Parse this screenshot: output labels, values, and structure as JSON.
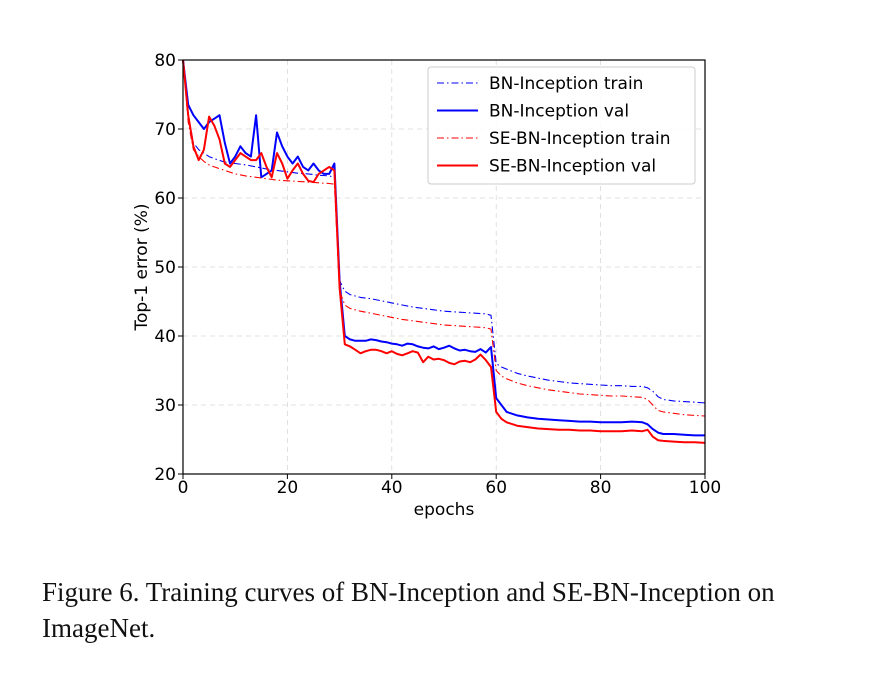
{
  "chart_data": {
    "type": "line",
    "xlabel": "epochs",
    "ylabel": "Top-1 error (%)",
    "xlim": [
      0,
      100
    ],
    "ylim": [
      20,
      80
    ],
    "xticks": [
      "0",
      "20",
      "40",
      "60",
      "80",
      "100"
    ],
    "yticks": [
      "20",
      "30",
      "40",
      "50",
      "60",
      "70",
      "80"
    ],
    "grid": true,
    "legend_position": "top-right",
    "series": [
      {
        "name": "BN-Inception train",
        "color": "#0000ff",
        "style": "dashdot",
        "x": [
          0,
          1,
          2,
          3,
          4,
          5,
          6,
          8,
          10,
          12,
          14,
          16,
          18,
          20,
          22,
          24,
          26,
          28,
          29,
          30,
          31,
          32,
          34,
          36,
          38,
          40,
          42,
          44,
          46,
          48,
          50,
          52,
          54,
          56,
          58,
          59,
          60,
          61,
          62,
          64,
          66,
          68,
          70,
          72,
          74,
          76,
          78,
          80,
          82,
          84,
          86,
          88,
          89,
          90,
          91,
          92,
          94,
          96,
          98,
          100
        ],
        "values": [
          80,
          72,
          68,
          67,
          66.5,
          66,
          65.7,
          65.2,
          65,
          64.8,
          64.5,
          64.2,
          64,
          63.8,
          63.6,
          63.5,
          63.3,
          63.2,
          63,
          48,
          46.5,
          46,
          45.6,
          45.4,
          45.1,
          44.8,
          44.5,
          44.2,
          44,
          43.8,
          43.6,
          43.5,
          43.4,
          43.3,
          43.2,
          43,
          36,
          35.5,
          35.2,
          34.6,
          34.2,
          33.9,
          33.6,
          33.4,
          33.2,
          33.1,
          33,
          32.9,
          32.8,
          32.8,
          32.7,
          32.7,
          32.5,
          32,
          31.2,
          30.8,
          30.6,
          30.5,
          30.4,
          30.3
        ]
      },
      {
        "name": "BN-Inception val",
        "color": "#0000ff",
        "style": "solid",
        "x": [
          0,
          1,
          2,
          3,
          4,
          5,
          6,
          7,
          8,
          9,
          10,
          11,
          12,
          13,
          14,
          15,
          16,
          17,
          18,
          19,
          20,
          21,
          22,
          23,
          24,
          25,
          26,
          27,
          28,
          29,
          30,
          31,
          32,
          33,
          34,
          35,
          36,
          37,
          38,
          39,
          40,
          41,
          42,
          43,
          44,
          45,
          46,
          47,
          48,
          49,
          50,
          51,
          52,
          53,
          54,
          55,
          56,
          57,
          58,
          59,
          60,
          61,
          62,
          64,
          66,
          68,
          70,
          72,
          74,
          76,
          78,
          80,
          82,
          84,
          86,
          88,
          89,
          90,
          91,
          92,
          94,
          96,
          98,
          100
        ],
        "values": [
          80,
          73.5,
          72,
          71,
          70,
          71,
          71.5,
          72,
          68,
          65,
          66,
          67.5,
          66.5,
          66,
          72,
          63,
          63.5,
          64,
          69.5,
          67.5,
          66,
          65,
          66,
          64.5,
          64,
          65,
          64,
          63.5,
          63.5,
          65,
          48,
          40,
          39.5,
          39.3,
          39.3,
          39.3,
          39.5,
          39.4,
          39.2,
          39.1,
          38.9,
          38.8,
          38.6,
          38.9,
          38.8,
          38.5,
          38.3,
          38.2,
          38.5,
          38.1,
          38.3,
          38.6,
          38.2,
          37.9,
          38,
          37.8,
          37.7,
          38.1,
          37.6,
          38.4,
          31,
          30,
          29,
          28.5,
          28.2,
          28,
          27.9,
          27.8,
          27.7,
          27.6,
          27.6,
          27.5,
          27.5,
          27.5,
          27.6,
          27.5,
          27.2,
          26.5,
          26,
          25.8,
          25.8,
          25.7,
          25.6,
          25.6
        ]
      },
      {
        "name": "SE-BN-Inception train",
        "color": "#ff0000",
        "style": "dashdot",
        "x": [
          0,
          1,
          2,
          3,
          4,
          5,
          6,
          8,
          10,
          12,
          14,
          16,
          18,
          20,
          22,
          24,
          26,
          28,
          29,
          30,
          31,
          32,
          34,
          36,
          38,
          40,
          42,
          44,
          46,
          48,
          50,
          52,
          54,
          56,
          58,
          59,
          60,
          61,
          62,
          64,
          66,
          68,
          70,
          72,
          74,
          76,
          78,
          80,
          82,
          84,
          86,
          88,
          89,
          90,
          91,
          92,
          94,
          96,
          98,
          100
        ],
        "values": [
          80,
          71,
          67,
          66,
          65.3,
          64.8,
          64.5,
          64,
          63.5,
          63.2,
          63,
          62.8,
          62.6,
          62.5,
          62.4,
          62.3,
          62.2,
          62.1,
          62,
          46.5,
          44.5,
          44,
          43.6,
          43.3,
          43,
          42.7,
          42.4,
          42.2,
          42,
          41.8,
          41.6,
          41.5,
          41.4,
          41.3,
          41.2,
          41,
          35,
          34.2,
          33.8,
          33.2,
          32.8,
          32.5,
          32.2,
          32,
          31.8,
          31.6,
          31.5,
          31.4,
          31.3,
          31.3,
          31.2,
          31.1,
          30.8,
          30,
          29.2,
          29,
          28.8,
          28.6,
          28.5,
          28.4
        ]
      },
      {
        "name": "SE-BN-Inception val",
        "color": "#ff0000",
        "style": "solid",
        "x": [
          0,
          1,
          2,
          3,
          4,
          5,
          6,
          7,
          8,
          9,
          10,
          11,
          12,
          13,
          14,
          15,
          16,
          17,
          18,
          19,
          20,
          21,
          22,
          23,
          24,
          25,
          26,
          27,
          28,
          29,
          30,
          31,
          32,
          33,
          34,
          35,
          36,
          37,
          38,
          39,
          40,
          41,
          42,
          43,
          44,
          45,
          46,
          47,
          48,
          49,
          50,
          51,
          52,
          53,
          54,
          55,
          56,
          57,
          58,
          59,
          60,
          61,
          62,
          64,
          66,
          68,
          70,
          72,
          74,
          76,
          78,
          80,
          82,
          84,
          86,
          88,
          89,
          90,
          91,
          92,
          94,
          96,
          98,
          100
        ],
        "values": [
          80,
          72,
          67.5,
          65.5,
          67,
          71.8,
          70.5,
          68.5,
          65,
          64.5,
          65.5,
          66.5,
          66,
          65.5,
          65.5,
          66.5,
          64.5,
          63,
          66.5,
          65,
          62.8,
          64,
          65,
          63.5,
          62.5,
          62.3,
          63.5,
          64,
          64.5,
          64,
          47,
          38.8,
          38.5,
          38,
          37.5,
          37.8,
          38,
          38,
          37.8,
          37.5,
          37.8,
          37.4,
          37.2,
          37.5,
          37.8,
          37.6,
          36.2,
          37,
          36.6,
          36.7,
          36.5,
          36.1,
          35.9,
          36.3,
          36.4,
          36.2,
          36.6,
          37.3,
          36.5,
          35.5,
          29,
          28,
          27.5,
          27,
          26.8,
          26.6,
          26.5,
          26.4,
          26.4,
          26.3,
          26.3,
          26.2,
          26.2,
          26.2,
          26.3,
          26.2,
          26.4,
          25.4,
          24.9,
          24.8,
          24.7,
          24.6,
          24.6,
          24.5
        ]
      }
    ]
  },
  "caption": "Figure 6. Training curves of BN-Inception and SE-BN-Inception on ImageNet."
}
